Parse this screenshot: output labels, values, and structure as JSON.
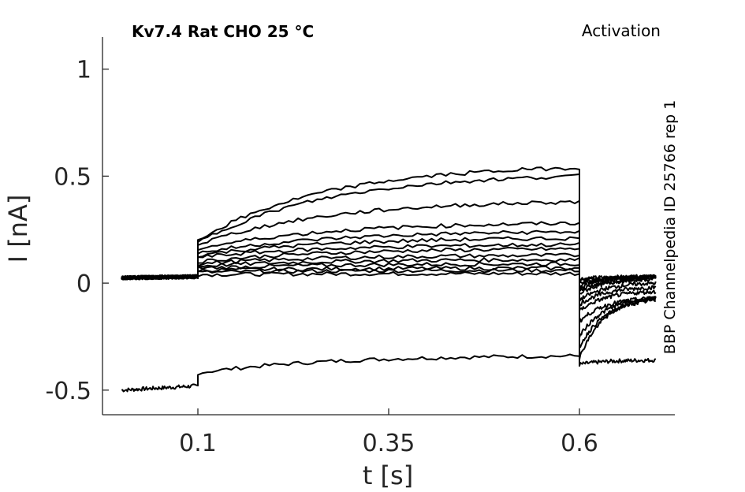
{
  "chart_data": {
    "type": "line",
    "title": "Kv7.4  Rat  CHO  25 °C",
    "protocol_label": "Activation",
    "side_label": "BBP Channelpedia ID 25766 rep 1",
    "xlabel": "t [s]",
    "ylabel": "I [nA]",
    "xlim": [
      -0.025,
      0.725
    ],
    "ylim": [
      -0.615,
      1.15
    ],
    "xticks": [
      0.1,
      0.35,
      0.6
    ],
    "xtick_labels": [
      "0.1",
      "0.35",
      "0.6"
    ],
    "yticks": [
      -0.5,
      0,
      0.5,
      1
    ],
    "ytick_labels": [
      "-0.5",
      "0",
      "0.5",
      "1"
    ],
    "grid": false,
    "line_color": "#000000",
    "series": [
      {
        "values_t": [
          0,
          0.1,
          0.1,
          0.6,
          0.6,
          0.7
        ],
        "values_i": [
          -0.5,
          -0.48,
          -0.42,
          -0.34,
          -0.38,
          -0.36
        ]
      },
      {
        "values_t": [
          0,
          0.1,
          0.1,
          0.6,
          0.6,
          0.7
        ],
        "values_i": [
          0.025,
          0.03,
          0.04,
          0.045,
          0.02,
          0.03
        ]
      },
      {
        "values_t": [
          0,
          0.1,
          0.1,
          0.6,
          0.6,
          0.7
        ],
        "values_i": [
          0.025,
          0.03,
          0.05,
          0.06,
          0.01,
          0.03
        ]
      },
      {
        "values_t": [
          0,
          0.1,
          0.1,
          0.6,
          0.6,
          0.7
        ],
        "values_i": [
          0.025,
          0.03,
          0.06,
          0.07,
          0.0,
          0.03
        ]
      },
      {
        "values_t": [
          0,
          0.1,
          0.1,
          0.6,
          0.6,
          0.7
        ],
        "values_i": [
          0.025,
          0.03,
          0.07,
          0.09,
          -0.01,
          0.03
        ]
      },
      {
        "values_t": [
          0,
          0.1,
          0.1,
          0.6,
          0.6,
          0.7
        ],
        "values_i": [
          0.025,
          0.03,
          0.08,
          0.11,
          -0.02,
          0.03
        ]
      },
      {
        "values_t": [
          0,
          0.1,
          0.1,
          0.6,
          0.6,
          0.7
        ],
        "values_i": [
          0.025,
          0.03,
          0.09,
          0.13,
          -0.03,
          0.02
        ]
      },
      {
        "values_t": [
          0,
          0.1,
          0.1,
          0.6,
          0.6,
          0.7
        ],
        "values_i": [
          0.025,
          0.03,
          0.1,
          0.16,
          -0.05,
          0.02
        ]
      },
      {
        "values_t": [
          0,
          0.1,
          0.1,
          0.6,
          0.6,
          0.7
        ],
        "values_i": [
          0.025,
          0.03,
          0.12,
          0.18,
          -0.08,
          0.0
        ]
      },
      {
        "values_t": [
          0,
          0.1,
          0.1,
          0.6,
          0.6,
          0.7
        ],
        "values_i": [
          0.025,
          0.03,
          0.13,
          0.21,
          -0.1,
          -0.02
        ]
      },
      {
        "values_t": [
          0,
          0.1,
          0.1,
          0.6,
          0.6,
          0.7
        ],
        "values_i": [
          0.025,
          0.03,
          0.14,
          0.24,
          -0.13,
          -0.04
        ]
      },
      {
        "values_t": [
          0,
          0.1,
          0.1,
          0.6,
          0.6,
          0.7
        ],
        "values_i": [
          0.025,
          0.03,
          0.16,
          0.28,
          -0.18,
          -0.07
        ]
      },
      {
        "values_t": [
          0,
          0.1,
          0.1,
          0.6,
          0.6,
          0.7
        ],
        "values_i": [
          0.025,
          0.03,
          0.18,
          0.38,
          -0.25,
          -0.07
        ]
      },
      {
        "values_t": [
          0,
          0.1,
          0.1,
          0.6,
          0.6,
          0.7
        ],
        "values_i": [
          0.025,
          0.03,
          0.19,
          0.5,
          -0.3,
          -0.08
        ]
      },
      {
        "values_t": [
          0,
          0.1,
          0.1,
          0.6,
          0.6,
          0.7
        ],
        "values_i": [
          0.025,
          0.03,
          0.2,
          0.54,
          -0.35,
          -0.07
        ]
      }
    ]
  }
}
